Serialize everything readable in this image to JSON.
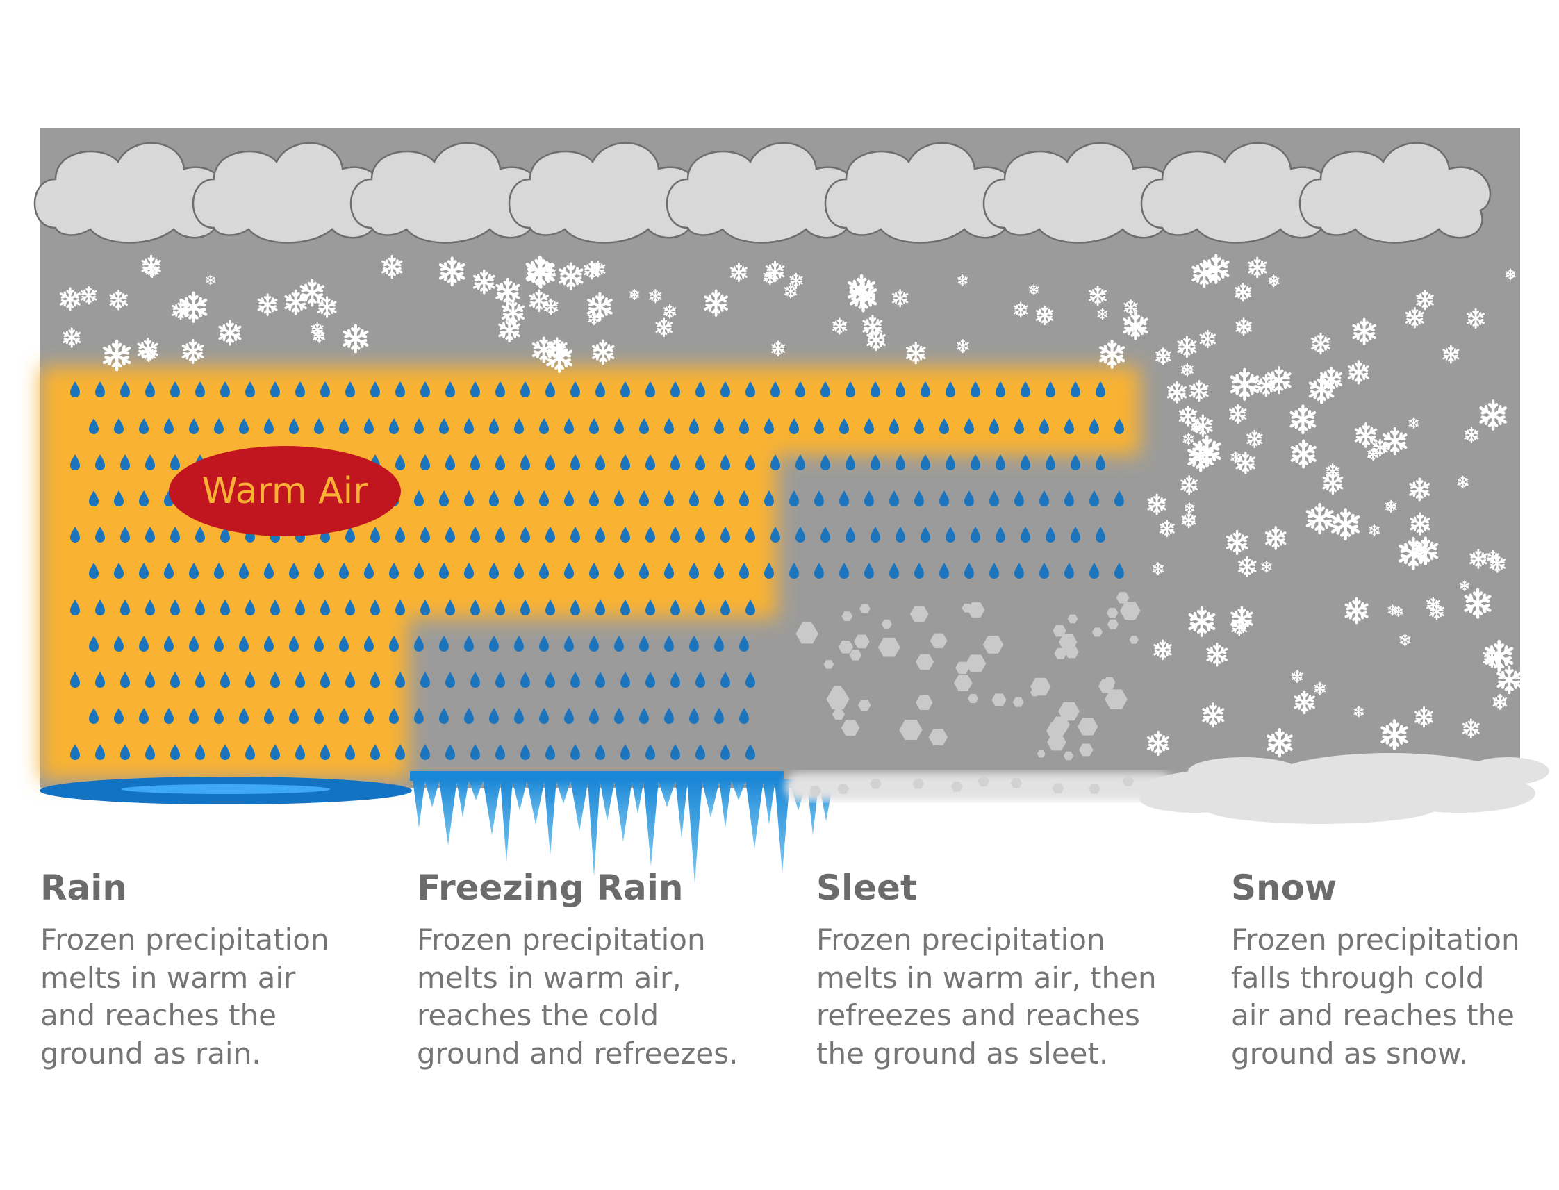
{
  "diagram": {
    "warm_air_label": "Warm Air",
    "colors": {
      "sky": "#9b9b9b",
      "cloud": "#d8d8d8",
      "warm_air": "#f9b233",
      "warm_air_badge": "#c1161f",
      "warm_air_text": "#f9b233",
      "raindrop": "#1c75bc",
      "puddle": "#1272c4",
      "icicle": "#2b9de0",
      "sleet": "#c7c7c7",
      "snowflake": "#ffffff",
      "snow_ground": "#e0e0e0"
    }
  },
  "panels": [
    {
      "id": "rain",
      "title": "Rain",
      "description": [
        "Frozen precipitation",
        "melts in warm air",
        "and reaches the",
        "ground as rain."
      ]
    },
    {
      "id": "freezing-rain",
      "title": "Freezing Rain",
      "description": [
        "Frozen precipitation",
        "melts in warm air,",
        "reaches the cold",
        "ground and refreezes."
      ]
    },
    {
      "id": "sleet",
      "title": "Sleet",
      "description": [
        "Frozen precipitation",
        "melts in warm air, then",
        "refreezes and reaches",
        "the ground as sleet."
      ]
    },
    {
      "id": "snow",
      "title": "Snow",
      "description": [
        "Frozen precipitation",
        "falls through cold",
        "air and reaches the",
        "ground as snow."
      ]
    }
  ]
}
